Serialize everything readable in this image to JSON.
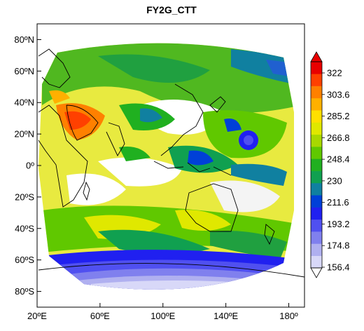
{
  "title": "FY2G_CTT",
  "map": {
    "lon_range": [
      20,
      190
    ],
    "lat_range": [
      -90,
      90
    ],
    "x_ticks": [
      {
        "value": 20,
        "label": "20ºE"
      },
      {
        "value": 60,
        "label": "60ºE"
      },
      {
        "value": 100,
        "label": "100ºE"
      },
      {
        "value": 140,
        "label": "140ºE"
      },
      {
        "value": 180,
        "label": "180º"
      }
    ],
    "y_ticks": [
      {
        "value": 80,
        "label": "80ºN"
      },
      {
        "value": 60,
        "label": "60ºN"
      },
      {
        "value": 40,
        "label": "40ºN"
      },
      {
        "value": 20,
        "label": "20ºN"
      },
      {
        "value": 0,
        "label": "0º"
      },
      {
        "value": -20,
        "label": "20ºS"
      },
      {
        "value": -40,
        "label": "40ºS"
      },
      {
        "value": -60,
        "label": "60ºS"
      },
      {
        "value": -80,
        "label": "80ºS"
      }
    ]
  },
  "colorbar": {
    "levels": [
      156.4,
      174.8,
      193.2,
      211.6,
      230,
      248.4,
      266.8,
      285.2,
      303.6,
      322
    ],
    "labels": [
      "322",
      "303.6",
      "285.2",
      "266.8",
      "248.4",
      "230",
      "211.6",
      "193.2",
      "174.8",
      "156.4"
    ],
    "colors_bottom_to_top": [
      "#d8d8f8",
      "#b0b0f0",
      "#8080ee",
      "#5050f0",
      "#2020f0",
      "#0040d8",
      "#1080a0",
      "#10a050",
      "#20b020",
      "#60c800",
      "#a8d800",
      "#e0e800",
      "#ffe000",
      "#ffb000",
      "#ff8000",
      "#ff4000",
      "#e80000"
    ],
    "extend": "both"
  }
}
